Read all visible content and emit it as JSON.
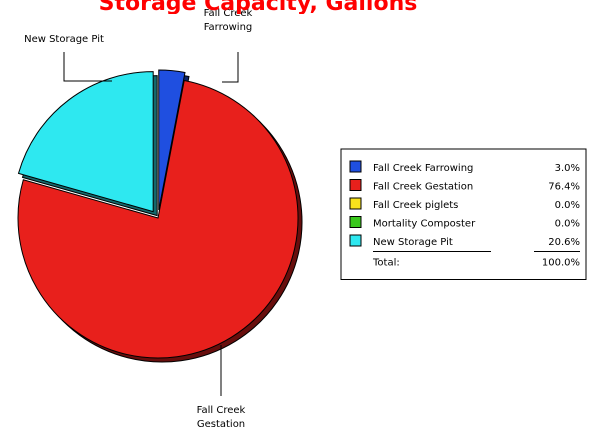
{
  "chart_data": {
    "type": "pie",
    "title": "Storage Capacity, Gallons",
    "title_color": "#ff0000",
    "slices": [
      {
        "label": "Fall Creek Farrowing",
        "callout": [
          "Fall Creek",
          "Farrowing"
        ],
        "value": 3.0,
        "percent_label": "3.0%",
        "color": "#1f4fe0"
      },
      {
        "label": "Fall Creek Gestation",
        "callout": [
          "Fall Creek",
          "Gestation"
        ],
        "value": 76.4,
        "percent_label": "76.4%",
        "color": "#e8201c"
      },
      {
        "label": "Fall Creek piglets",
        "callout": [],
        "value": 0.0,
        "percent_label": "0.0%",
        "color": "#f7e21c"
      },
      {
        "label": "Mortality Composter",
        "callout": [],
        "value": 0.0,
        "percent_label": "0.0%",
        "color": "#39c81c"
      },
      {
        "label": "New Storage Pit",
        "callout": [
          "New Storage Pit"
        ],
        "value": 20.6,
        "percent_label": "20.6%",
        "color": "#2ee8f0"
      }
    ],
    "legend": {
      "placement": "right",
      "total_label": "Total:",
      "total_value": "100.0%"
    }
  }
}
